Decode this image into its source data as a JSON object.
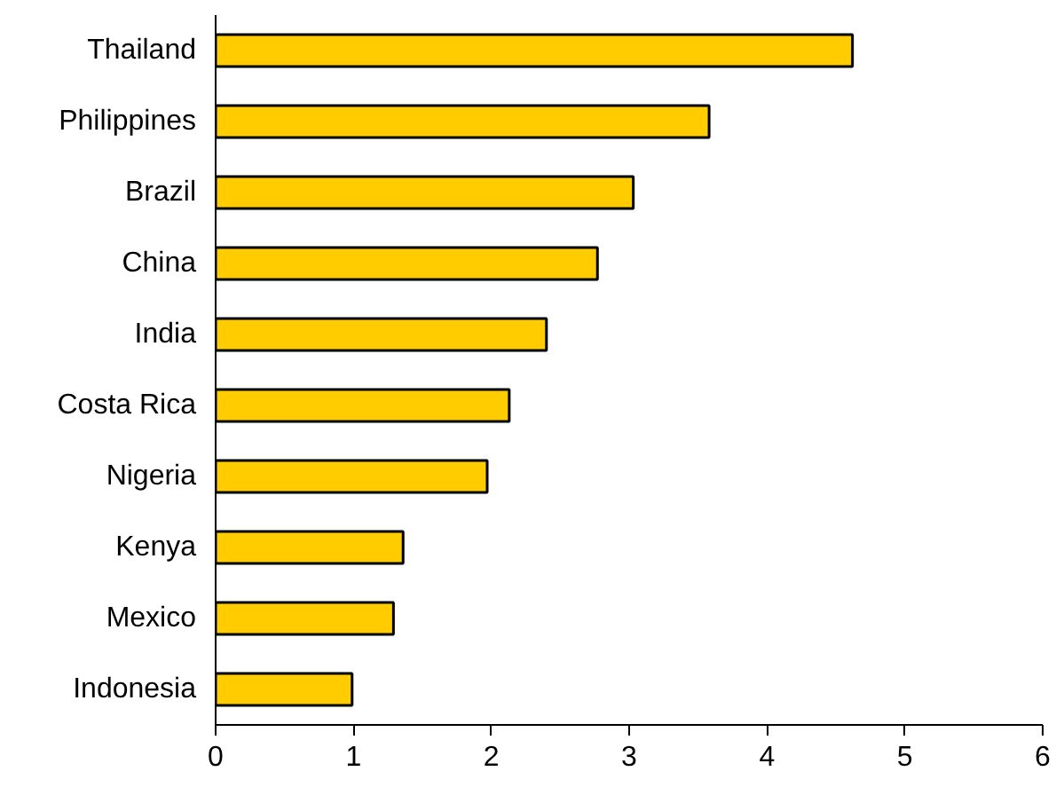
{
  "chart_data": {
    "type": "bar",
    "orientation": "horizontal",
    "categories": [
      "Thailand",
      "Philippines",
      "Brazil",
      "China",
      "India",
      "Costa Rica",
      "Nigeria",
      "Kenya",
      "Mexico",
      "Indonesia"
    ],
    "values": [
      4.62,
      3.58,
      3.03,
      2.77,
      2.4,
      2.13,
      1.97,
      1.36,
      1.29,
      0.99
    ],
    "color": "#ffcc00",
    "xlim": [
      0,
      6
    ],
    "xticks": [
      0,
      1,
      2,
      3,
      4,
      5,
      6
    ],
    "grid": false
  }
}
